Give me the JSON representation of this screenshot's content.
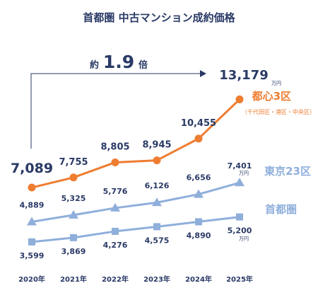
{
  "chart_data": {
    "type": "line",
    "title": "首都圏 中古マンション成約価格",
    "categories": [
      "2020年",
      "2021年",
      "2022年",
      "2023年",
      "2024年",
      "2025年"
    ],
    "unit": "万円",
    "series": [
      {
        "name": "都心3区",
        "sub": "（千代田区・港区・中央区）",
        "color": "#ee7d31",
        "marker": "circle",
        "values": [
          7089,
          7755,
          8805,
          8945,
          10455,
          13179
        ],
        "labels": [
          "7,089",
          "7,755",
          "8,805",
          "8,945",
          "10,455",
          "13,179"
        ]
      },
      {
        "name": "東京23区",
        "color": "#8fafdb",
        "marker": "triangle",
        "values": [
          4889,
          5325,
          5776,
          6126,
          6656,
          7401
        ],
        "labels": [
          "4,889",
          "5,325",
          "5,776",
          "6,126",
          "6,656",
          "7,401"
        ]
      },
      {
        "name": "首都圏",
        "color": "#8fafdb",
        "marker": "square",
        "values": [
          3599,
          3869,
          4276,
          4575,
          4890,
          5200
        ],
        "labels": [
          "3,599",
          "3,869",
          "4,276",
          "4,575",
          "4,890",
          "5,200"
        ]
      }
    ],
    "annotation": {
      "prefix": "約",
      "value": "1.9",
      "suffix": "倍"
    }
  }
}
